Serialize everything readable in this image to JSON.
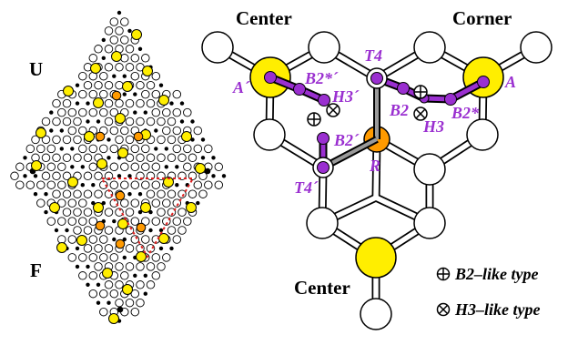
{
  "left_panel": {
    "label_top": "U",
    "label_bottom": "F"
  },
  "right_panel": {
    "region_labels": {
      "center_left": "Center",
      "corner": "Corner",
      "center_bottom": "Center"
    },
    "site_labels": {
      "A_prime": "A´",
      "A": "A",
      "T4": "T4",
      "T4_prime": "T4´",
      "B2_star_prime": "B2*´",
      "B2_star": "B2*",
      "H3_prime": "H3´",
      "H3": "H3",
      "B2": "B2",
      "B2_prime": "B2´",
      "R": "R"
    }
  },
  "legend": {
    "b2_like": "B2–like type",
    "h3_like": "H3–like type"
  },
  "colors": {
    "yellow_atom": "#ffee00",
    "orange_atom": "#ff9a00",
    "purple_site": "#9a2fd0",
    "outline": "#000000",
    "dashed_triangle": "#e02020"
  }
}
